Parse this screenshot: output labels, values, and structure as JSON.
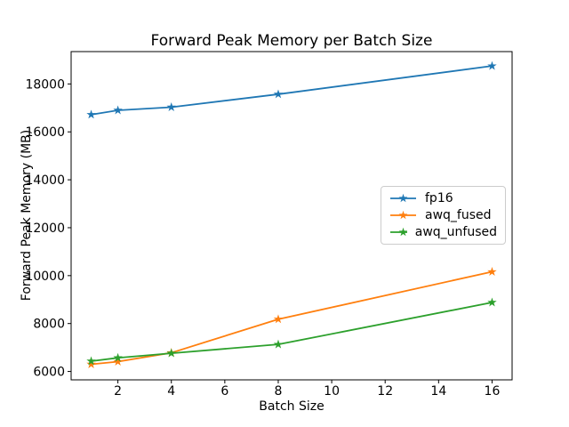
{
  "chart_data": {
    "type": "line",
    "title": "Forward Peak Memory per Batch Size",
    "xlabel": "Batch Size",
    "ylabel": "Forward Peak Memory (MB)",
    "x": [
      1,
      2,
      4,
      8,
      16
    ],
    "series": [
      {
        "name": "fp16",
        "color": "#1f77b4",
        "values": [
          16720,
          16900,
          17030,
          17570,
          18750
        ]
      },
      {
        "name": "awq_fused",
        "color": "#ff7f0e",
        "values": [
          6300,
          6410,
          6780,
          8180,
          10160
        ]
      },
      {
        "name": "awq_unfused",
        "color": "#2ca02c",
        "values": [
          6430,
          6570,
          6760,
          7130,
          8880
        ]
      }
    ],
    "xticks": [
      2,
      4,
      6,
      8,
      10,
      12,
      14,
      16
    ],
    "yticks": [
      6000,
      8000,
      10000,
      12000,
      14000,
      16000,
      18000
    ],
    "xlim": [
      0.25,
      16.75
    ],
    "ylim": [
      5650,
      19350
    ],
    "marker": "star",
    "grid": "off",
    "legend_position": "center right",
    "spine_color": "#000000",
    "background": "#ffffff"
  }
}
